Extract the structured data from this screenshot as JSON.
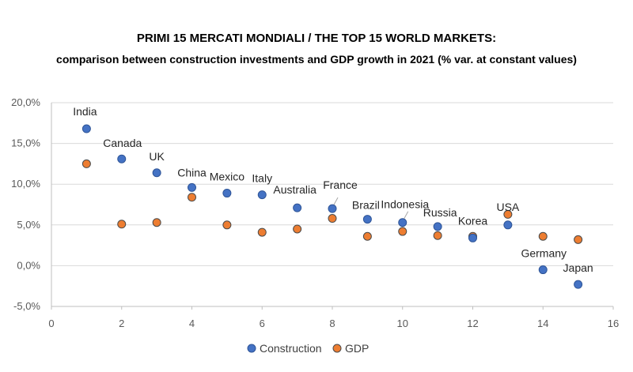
{
  "chart_data": {
    "type": "scatter",
    "title": "PRIMI 15 MERCATI MONDIALI / THE TOP 15 WORLD MARKETS:",
    "subtitle": "comparison between construction investments and GDP growth in 2021 (% var. at constant values)",
    "xlim": [
      0,
      16
    ],
    "ylim": [
      -5,
      20
    ],
    "x_ticks": [
      "0",
      "2",
      "4",
      "6",
      "8",
      "10",
      "12",
      "14",
      "16"
    ],
    "y_ticks": [
      "-5,0%",
      "0,0%",
      "5,0%",
      "10,0%",
      "15,0%",
      "20,0%"
    ],
    "grid": "horizontal",
    "legend_position": "bottom",
    "series": [
      {
        "name": "Construction",
        "color": "#4472C4",
        "points": [
          {
            "x": 1,
            "y": 16.8,
            "label": "India"
          },
          {
            "x": 2,
            "y": 13.1,
            "label": "Canada"
          },
          {
            "x": 3,
            "y": 11.4,
            "label": "UK"
          },
          {
            "x": 4,
            "y": 9.6,
            "label": "China"
          },
          {
            "x": 5,
            "y": 8.9,
            "label": "Mexico"
          },
          {
            "x": 6,
            "y": 8.7,
            "label": "Italy"
          },
          {
            "x": 7,
            "y": 7.1,
            "label": "Australia"
          },
          {
            "x": 8,
            "y": 7.0,
            "label": "France"
          },
          {
            "x": 9,
            "y": 5.7,
            "label": "Brazil"
          },
          {
            "x": 10,
            "y": 5.3,
            "label": "Indonesia"
          },
          {
            "x": 11,
            "y": 4.8,
            "label": "Russia"
          },
          {
            "x": 12,
            "y": 3.4,
            "label": "Korea"
          },
          {
            "x": 13,
            "y": 5.0,
            "label": "USA"
          },
          {
            "x": 14,
            "y": -0.5,
            "label": "Germany"
          },
          {
            "x": 15,
            "y": -2.3,
            "label": "Japan"
          }
        ]
      },
      {
        "name": "GDP",
        "color": "#ED7D31",
        "points": [
          {
            "x": 1,
            "y": 12.5
          },
          {
            "x": 2,
            "y": 5.1
          },
          {
            "x": 3,
            "y": 5.3
          },
          {
            "x": 4,
            "y": 8.4
          },
          {
            "x": 5,
            "y": 5.0
          },
          {
            "x": 6,
            "y": 4.1
          },
          {
            "x": 7,
            "y": 4.5
          },
          {
            "x": 8,
            "y": 5.8
          },
          {
            "x": 9,
            "y": 3.6
          },
          {
            "x": 10,
            "y": 4.2
          },
          {
            "x": 11,
            "y": 3.7
          },
          {
            "x": 12,
            "y": 3.6
          },
          {
            "x": 13,
            "y": 6.3
          },
          {
            "x": 14,
            "y": 3.6
          },
          {
            "x": 15,
            "y": 3.2
          }
        ]
      }
    ]
  }
}
